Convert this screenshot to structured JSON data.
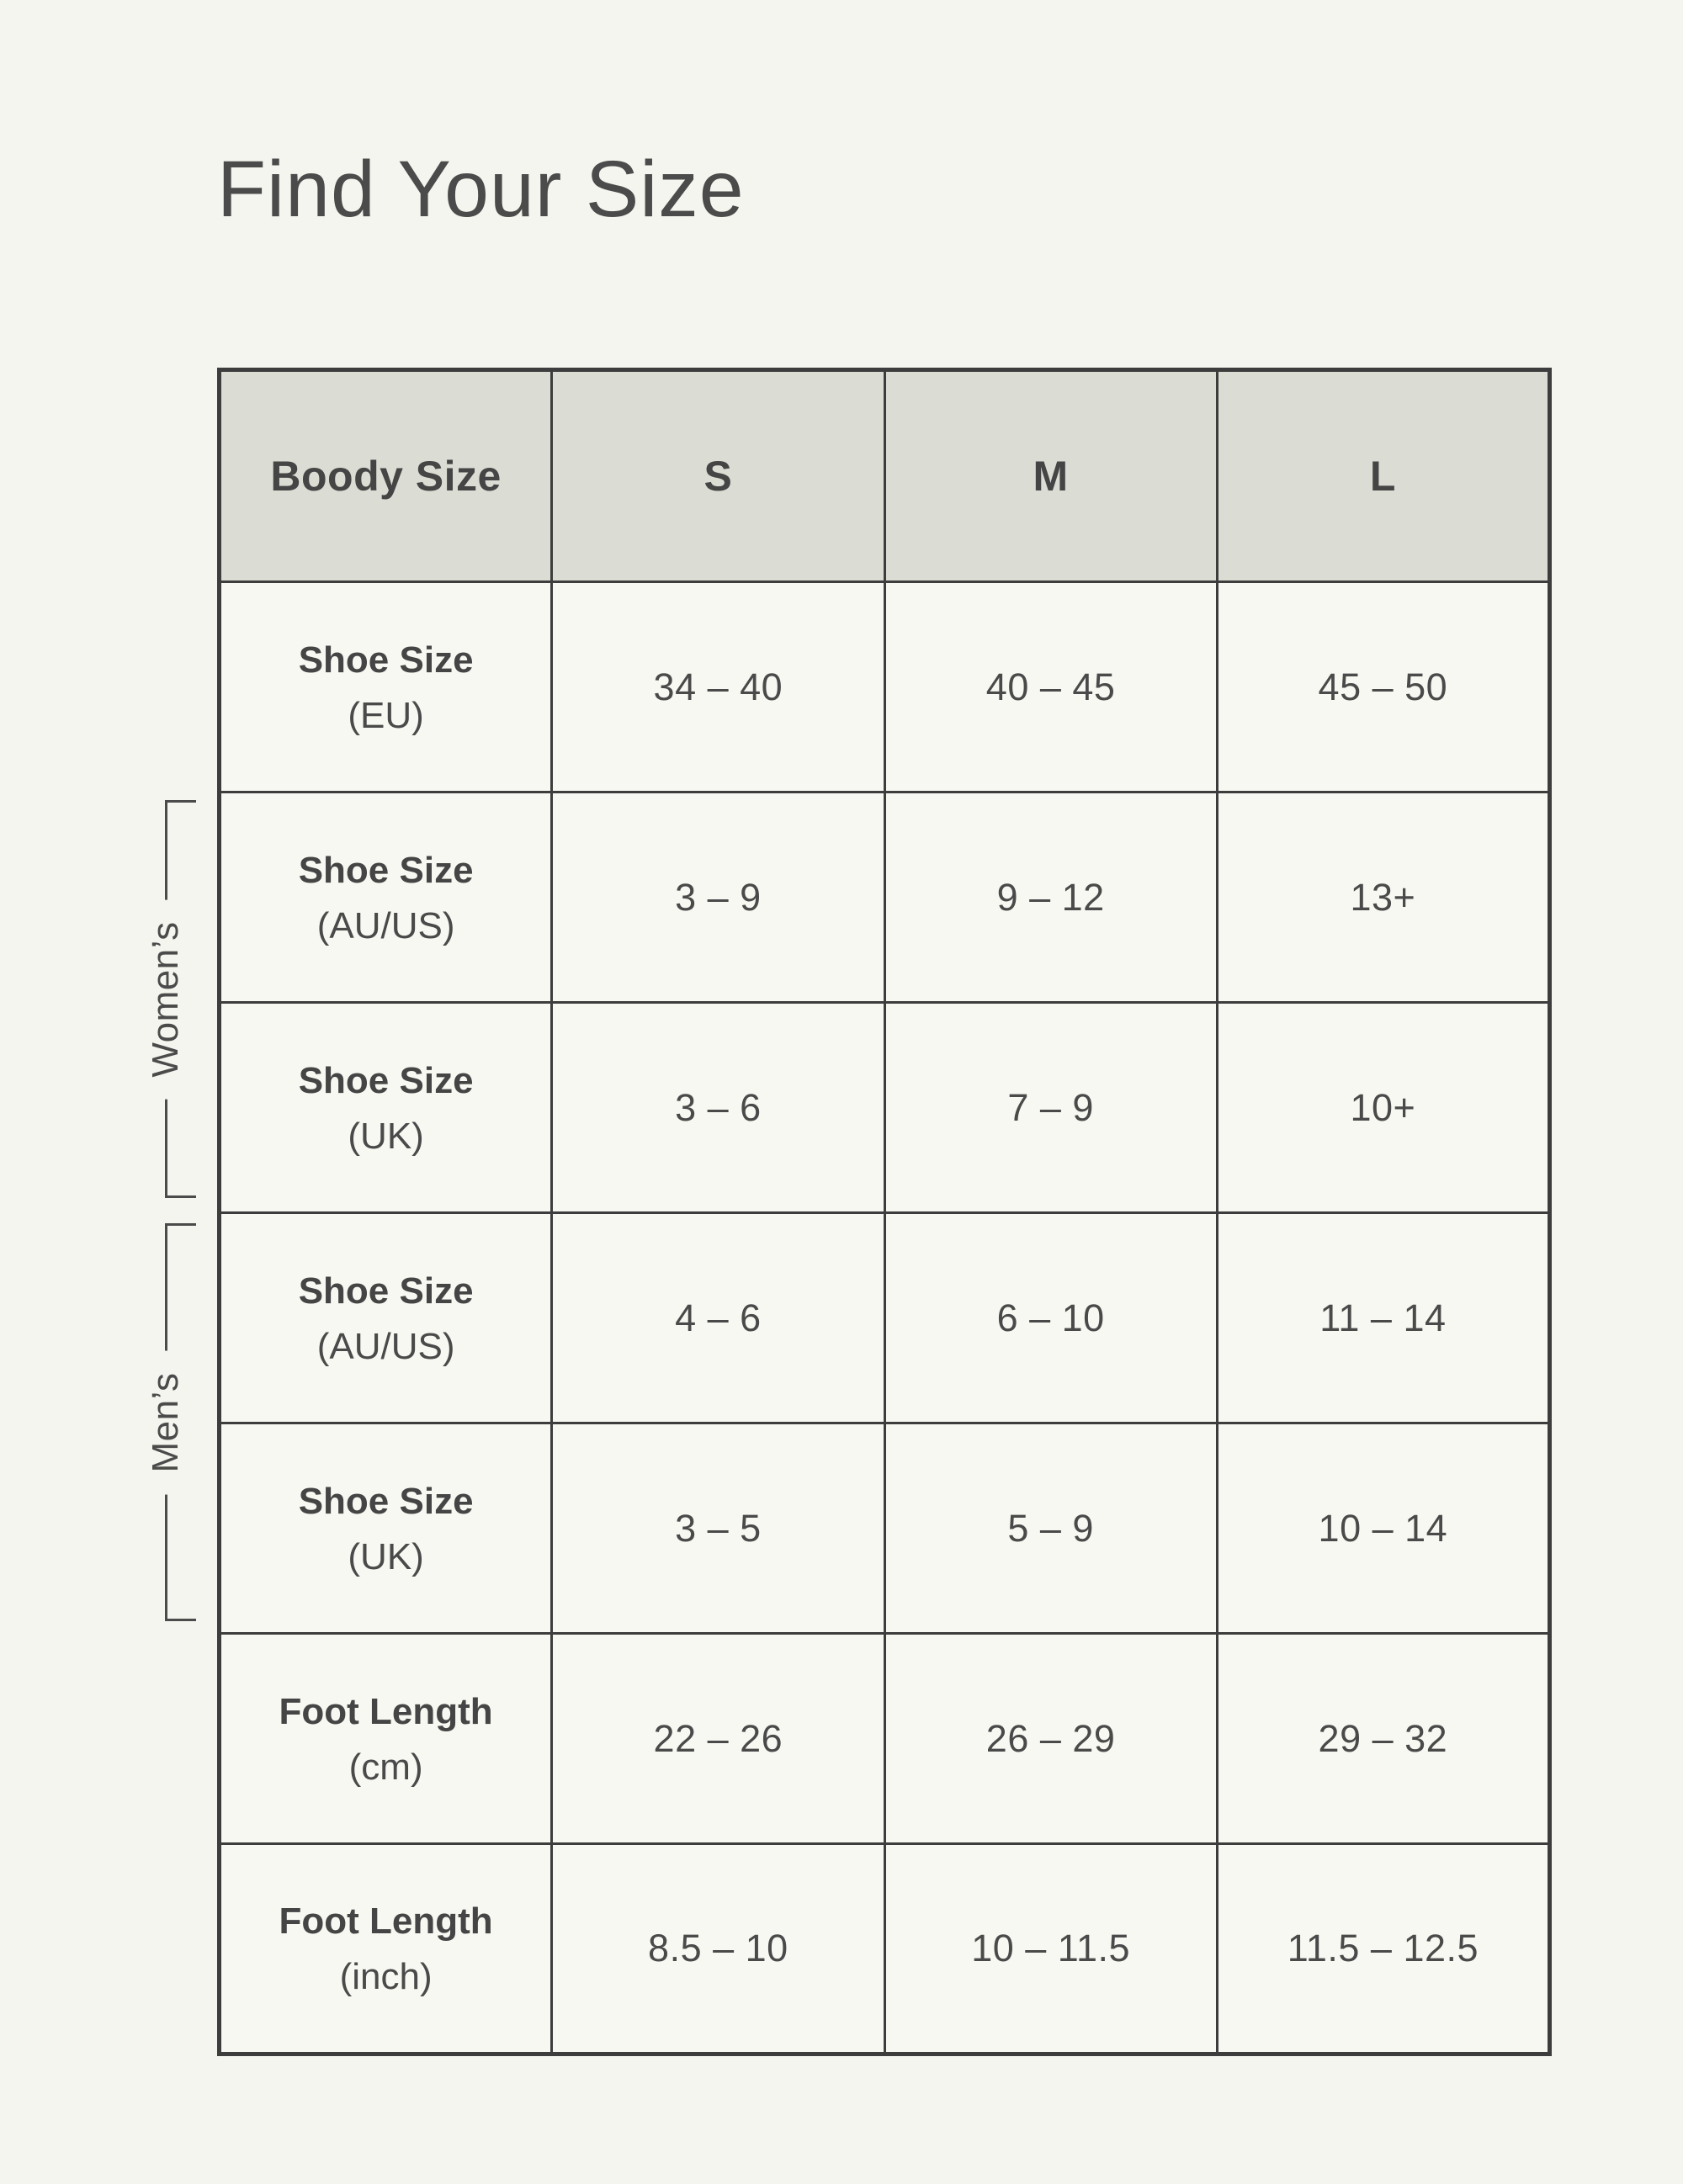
{
  "page": {
    "title": "Find Your Size"
  },
  "table": {
    "header": {
      "label": "Boody Size",
      "sizes": [
        "S",
        "M",
        "L"
      ]
    },
    "rows": [
      {
        "label": "Shoe Size",
        "unit": "(EU)",
        "group": "",
        "values": [
          "34 – 40",
          "40 – 45",
          "45 – 50"
        ]
      },
      {
        "label": "Shoe Size",
        "unit": "(AU/US)",
        "group": "womens",
        "values": [
          "3 – 9",
          "9 – 12",
          "13+"
        ]
      },
      {
        "label": "Shoe Size",
        "unit": "(UK)",
        "group": "womens",
        "values": [
          "3 – 6",
          "7 – 9",
          "10+"
        ]
      },
      {
        "label": "Shoe Size",
        "unit": "(AU/US)",
        "group": "mens",
        "values": [
          "4 – 6",
          "6 – 10",
          "11 – 14"
        ]
      },
      {
        "label": "Shoe Size",
        "unit": "(UK)",
        "group": "mens",
        "values": [
          "3 – 5",
          "5 – 9",
          "10 – 14"
        ]
      },
      {
        "label": "Foot Length",
        "unit": "(cm)",
        "group": "",
        "values": [
          "22 – 26",
          "26 – 29",
          "29 – 32"
        ]
      },
      {
        "label": "Foot Length",
        "unit": "(inch)",
        "group": "",
        "values": [
          "8.5 – 10",
          "10 – 11.5",
          "11.5 – 12.5"
        ]
      }
    ]
  },
  "groups": {
    "womens": "Women’s",
    "mens": "Men’s"
  },
  "colors": {
    "page_background": "#f5f5ef",
    "header_background": "#dbdcd3",
    "cell_background": "#f8f8f2",
    "table_border": "#3d3d3d",
    "text": "#474747"
  },
  "chart_data": {
    "type": "table",
    "title": "Find Your Size",
    "columns": [
      "Boody Size",
      "S",
      "M",
      "L"
    ],
    "rows": [
      [
        "Shoe Size (EU)",
        "34 – 40",
        "40 – 45",
        "45 – 50"
      ],
      [
        "Shoe Size (AU/US) — Women’s",
        "3 – 9",
        "9 – 12",
        "13+"
      ],
      [
        "Shoe Size (UK) — Women’s",
        "3 – 6",
        "7 – 9",
        "10+"
      ],
      [
        "Shoe Size (AU/US) — Men’s",
        "4 – 6",
        "6 – 10",
        "11 – 14"
      ],
      [
        "Shoe Size (UK) — Men’s",
        "3 – 5",
        "5 – 9",
        "10 – 14"
      ],
      [
        "Foot Length (cm)",
        "22 – 26",
        "26 – 29",
        "29 – 32"
      ],
      [
        "Foot Length (inch)",
        "8.5 – 10",
        "10 – 11.5",
        "11.5 – 12.5"
      ]
    ],
    "row_groups": [
      {
        "label": "Women’s",
        "row_indices": [
          1,
          2
        ]
      },
      {
        "label": "Men’s",
        "row_indices": [
          3,
          4
        ]
      }
    ]
  }
}
